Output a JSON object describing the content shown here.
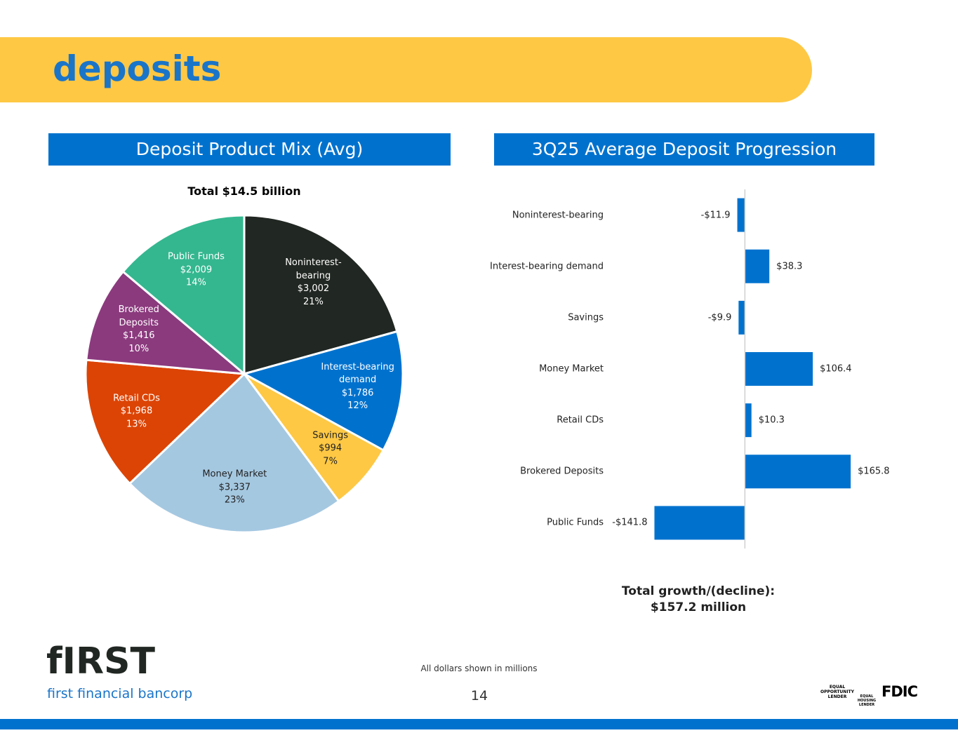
{
  "header": {
    "title": "deposits"
  },
  "chart_data": [
    {
      "type": "pie",
      "title": "Deposit Product Mix (Avg)",
      "subtitle": "Total $14.5 billion",
      "categories": [
        "Noninterest-bearing",
        "Interest-bearing demand",
        "Savings",
        "Money Market",
        "Retail CDs",
        "Brokered Deposits",
        "Public Funds"
      ],
      "values": [
        3002,
        1786,
        994,
        3337,
        1968,
        1416,
        2009
      ],
      "value_labels": [
        "$3,002",
        "$1,786",
        "$994",
        "$3,337",
        "$1,968",
        "$1,416",
        "$2,009"
      ],
      "percents": [
        21,
        12,
        7,
        23,
        13,
        10,
        14
      ],
      "percent_labels": [
        "21%",
        "12%",
        "7%",
        "23%",
        "13%",
        "10%",
        "14%"
      ],
      "colors": [
        "#212722",
        "#0072ce",
        "#fec844",
        "#a5c8e1",
        "#dc4405",
        "#8b3a7e",
        "#34b78f"
      ]
    },
    {
      "type": "hbar",
      "title": "3Q25 Average Deposit Progression",
      "categories": [
        "Noninterest-bearing",
        "Interest-bearing demand",
        "Savings",
        "Money Market",
        "Retail CDs",
        "Brokered Deposits",
        "Public Funds"
      ],
      "values": [
        -11.9,
        38.3,
        -9.9,
        106.4,
        10.3,
        165.8,
        -141.8
      ],
      "value_labels": [
        "-$11.9",
        "$38.3",
        "-$9.9",
        "$106.4",
        "$10.3",
        "$165.8",
        "-$141.8"
      ],
      "color": "#0072ce",
      "xlim": [
        -150,
        180
      ],
      "annotation": [
        "Total growth/(decline):",
        "$157.2 million"
      ]
    }
  ],
  "footer": {
    "note": "All dollars shown in millions",
    "page": "14",
    "logo": "fIRST",
    "company": "first financial bancorp",
    "badges": [
      "EQUAL OPPORTUNITY LENDER",
      "EQUAL HOUSING LENDER",
      "FDIC"
    ]
  }
}
